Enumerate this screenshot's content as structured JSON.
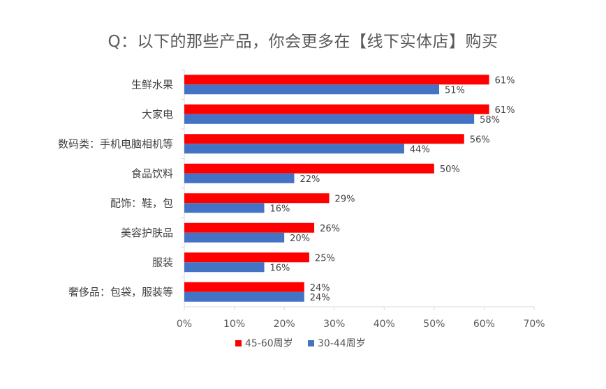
{
  "chart_data": {
    "type": "bar",
    "orientation": "horizontal",
    "title": "Q：以下的那些产品，你会更多在【线下实体店】购买",
    "categories": [
      "生鲜水果",
      "大家电",
      "数码类：手机电脑相机等",
      "食品饮料",
      "配饰：鞋，包",
      "美容护肤品",
      "服装",
      "奢侈品：包袋，服装等"
    ],
    "series": [
      {
        "name": "45-60周岁",
        "color": "#ff0000",
        "values": [
          61,
          61,
          56,
          50,
          29,
          26,
          25,
          24
        ],
        "labels": [
          "61%",
          "61%",
          "56%",
          "50%",
          "29%",
          "26%",
          "25%",
          "24%"
        ]
      },
      {
        "name": "30-44周岁",
        "color": "#4472c4",
        "values": [
          51,
          58,
          44,
          22,
          16,
          20,
          16,
          24
        ],
        "labels": [
          "51%",
          "58%",
          "44%",
          "22%",
          "16%",
          "20%",
          "16%",
          "24%"
        ]
      }
    ],
    "xlim": [
      0,
      70
    ],
    "xticks": [
      0,
      10,
      20,
      30,
      40,
      50,
      60,
      70
    ],
    "xtick_labels": [
      "0%",
      "10%",
      "20%",
      "30%",
      "40%",
      "50%",
      "60%",
      "70%"
    ],
    "grid": false,
    "legend_position": "bottom"
  }
}
